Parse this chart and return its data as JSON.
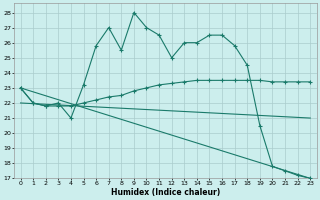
{
  "xlabel": "Humidex (Indice chaleur)",
  "bg_color": "#cceeed",
  "grid_color": "#aacccc",
  "line_color": "#1a7a6a",
  "xlim": [
    -0.5,
    23.5
  ],
  "ylim": [
    17,
    28.6
  ],
  "yticks": [
    17,
    18,
    19,
    20,
    21,
    22,
    23,
    24,
    25,
    26,
    27,
    28
  ],
  "xticks": [
    0,
    1,
    2,
    3,
    4,
    5,
    6,
    7,
    8,
    9,
    10,
    11,
    12,
    13,
    14,
    15,
    16,
    17,
    18,
    19,
    20,
    21,
    22,
    23
  ],
  "lines": [
    {
      "x": [
        0,
        1,
        2,
        3,
        4,
        5,
        6,
        7,
        8,
        9,
        10,
        11,
        12,
        13,
        14,
        15,
        16,
        17,
        18,
        19,
        20,
        21,
        22,
        23
      ],
      "y": [
        23,
        22,
        21.8,
        22,
        21,
        23.2,
        25.8,
        27,
        25.5,
        28,
        27,
        26.5,
        25,
        26,
        26,
        26.5,
        26.5,
        25.8,
        24.5,
        20.5,
        17.8,
        17.5,
        17.2,
        17
      ],
      "marker": true
    },
    {
      "x": [
        0,
        1,
        2,
        3,
        4,
        5,
        6,
        7,
        8,
        9,
        10,
        11,
        12,
        13,
        14,
        15,
        16,
        17,
        18,
        19,
        20,
        21,
        22,
        23
      ],
      "y": [
        23,
        22,
        21.8,
        21.8,
        21.8,
        22,
        22.2,
        22.4,
        22.5,
        22.8,
        23,
        23.2,
        23.3,
        23.4,
        23.5,
        23.5,
        23.5,
        23.5,
        23.5,
        23.5,
        23.4,
        23.4,
        23.4,
        23.4
      ],
      "marker": true
    },
    {
      "x": [
        0,
        23
      ],
      "y": [
        22,
        21
      ],
      "marker": false
    },
    {
      "x": [
        0,
        23
      ],
      "y": [
        23,
        17
      ],
      "marker": false
    }
  ]
}
